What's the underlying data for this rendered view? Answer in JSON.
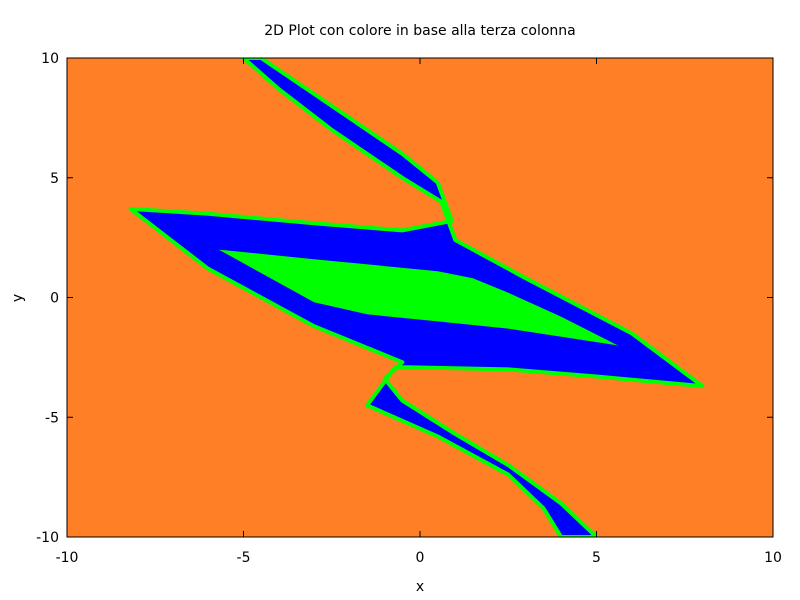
{
  "chart_data": {
    "type": "heatmap",
    "title": "2D Plot con colore in base alla terza colonna",
    "xlabel": "x",
    "ylabel": "y",
    "xlim": [
      -10,
      10
    ],
    "ylim": [
      -10,
      10
    ],
    "xticks": [
      -10,
      -5,
      0,
      5,
      10
    ],
    "yticks": [
      -10,
      -5,
      0,
      5,
      10
    ],
    "xtick_labels": [
      "-10",
      "-5",
      "0",
      "5",
      "10"
    ],
    "ytick_labels": [
      "-10",
      "-5",
      "0",
      "5",
      "10"
    ],
    "grid": false,
    "legend": "none",
    "colors": {
      "background_region": "#ff7f27",
      "outer_band": "#00ff00",
      "middle_region": "#0000ff",
      "inner_region": "#00ff00"
    },
    "regions": [
      {
        "color_key": "middle_region",
        "outline": [
          [
            -4.5,
            10
          ],
          [
            -3.5,
            9
          ],
          [
            -2,
            7.5
          ],
          [
            -0.5,
            6
          ],
          [
            0.5,
            4.8
          ],
          [
            0.9,
            3.2
          ],
          [
            -0.5,
            2.8
          ],
          [
            -3,
            3.1
          ],
          [
            -6,
            3.5
          ],
          [
            -8.2,
            3.7
          ],
          [
            -6,
            1.2
          ],
          [
            -3,
            -1.2
          ],
          [
            -0.5,
            -2.7
          ],
          [
            -1,
            -3.4
          ],
          [
            -0.5,
            -4.3
          ],
          [
            1,
            -5.7
          ],
          [
            2.5,
            -7
          ],
          [
            4,
            -8.6
          ],
          [
            5,
            -10
          ],
          [
            4,
            -10
          ],
          [
            3.5,
            -8.8
          ],
          [
            2.5,
            -7.4
          ],
          [
            0.5,
            -5.8
          ],
          [
            -1.5,
            -4.5
          ],
          [
            -0.7,
            -2.9
          ],
          [
            2.5,
            -3
          ],
          [
            5,
            -3.3
          ],
          [
            8,
            -3.7
          ],
          [
            6,
            -1.5
          ],
          [
            3,
            0.8
          ],
          [
            1,
            2.4
          ],
          [
            0.6,
            4
          ],
          [
            -0.5,
            5
          ],
          [
            -2.5,
            7
          ],
          [
            -4,
            8.7
          ],
          [
            -5,
            10
          ]
        ]
      },
      {
        "color_key": "inner_region",
        "outline": [
          [
            -5.7,
            2
          ],
          [
            -3,
            1.6
          ],
          [
            0.5,
            1.1
          ],
          [
            1.5,
            0.8
          ],
          [
            2.5,
            0.2
          ],
          [
            4,
            -0.8
          ],
          [
            5.6,
            -2
          ],
          [
            2.5,
            -1.3
          ],
          [
            0.5,
            -1
          ],
          [
            -1.5,
            -0.7
          ],
          [
            -3,
            -0.2
          ]
        ]
      }
    ]
  }
}
